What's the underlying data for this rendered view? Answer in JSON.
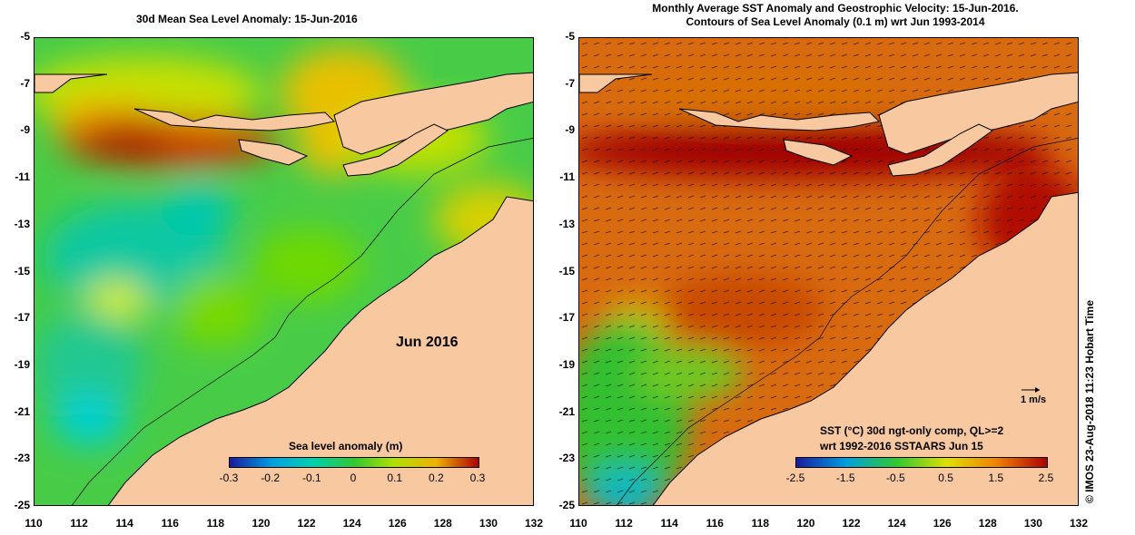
{
  "left_panel": {
    "title": "30d Mean Sea Level Anomaly: 15-Jun-2016",
    "month_label": "Jun 2016",
    "colorbar": {
      "label": "Sea level anomaly (m)",
      "ticks": [
        "-0.3",
        "-0.2",
        "-0.1",
        "0",
        "0.1",
        "0.2",
        "0.3"
      ]
    }
  },
  "right_panel": {
    "title_line1": "Monthly Average SST Anomaly  and Geostrophic Velocity: 15-Jun-2016.",
    "title_line2": "Contours of Sea Level Anomaly (0.1 m) wrt Jun 1993-2014",
    "vector_scale_label": "1 m/s",
    "caption_line1": "SST (°C) 30d ngt-only comp, QL>=2",
    "caption_line2": "wrt 1992-2016 SSTAARS Jun 15",
    "colorbar": {
      "ticks": [
        "-2.5",
        "-1.5",
        "-0.5",
        "0.5",
        "1.5",
        "2.5"
      ]
    }
  },
  "axes": {
    "y_ticks": [
      "-5",
      "-7",
      "-9",
      "-11",
      "-13",
      "-15",
      "-17",
      "-19",
      "-21",
      "-23",
      "-25"
    ],
    "x_ticks": [
      "110",
      "112",
      "114",
      "116",
      "118",
      "120",
      "122",
      "124",
      "126",
      "128",
      "130",
      "132"
    ]
  },
  "credit": "© IMOS 23-Aug-2018 11:23 Hobart Time",
  "colors": {
    "land": "#f8c8a0",
    "sla_low": "#00c8c0",
    "sla_mid": "#40d040",
    "sla_high": "#e0c000",
    "sla_max": "#c00000",
    "sst_hot": "#a00000",
    "sst_warm": "#d86000",
    "sst_cool": "#30c030"
  }
}
